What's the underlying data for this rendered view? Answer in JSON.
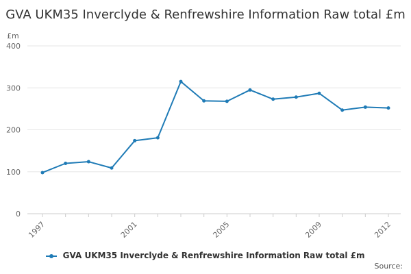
{
  "chart_data": {
    "type": "line",
    "title": "GVA UKM35 Inverclyde & Renfrewshire Information Raw total £m",
    "ylabel": "£m",
    "xlabel": "",
    "x": [
      1997,
      1998,
      1999,
      2000,
      2001,
      2002,
      2003,
      2004,
      2005,
      2006,
      2007,
      2008,
      2009,
      2010,
      2011,
      2012
    ],
    "x_tick_labels": [
      "1997",
      "2001",
      "2005",
      "2009",
      "2012"
    ],
    "y_tick_labels": [
      "0",
      "100",
      "200",
      "300",
      "400"
    ],
    "ylim": [
      0,
      400
    ],
    "grid": "horizontal",
    "legend_position": "bottom",
    "series": [
      {
        "name": "GVA UKM35 Inverclyde & Renfrewshire Information Raw total £m",
        "color": "#1f7bb6",
        "values": [
          98,
          120,
          124,
          109,
          174,
          181,
          315,
          269,
          268,
          295,
          273,
          278,
          287,
          247,
          254,
          252
        ]
      }
    ]
  },
  "source_label": "Source:"
}
